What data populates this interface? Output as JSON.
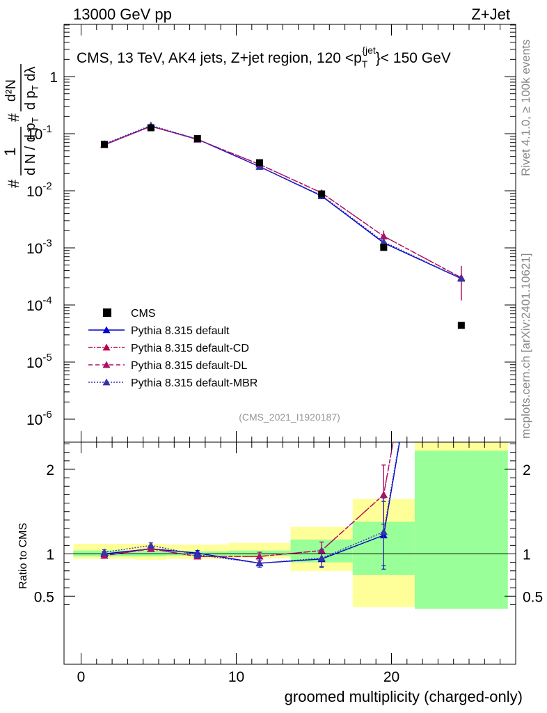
{
  "header": {
    "left": "13000 GeV pp",
    "right": "Z+Jet"
  },
  "side_labels": {
    "rivet": "Rivet 4.1.0, ≥ 100k events",
    "mcplots": "mcplots.cern.ch [arXiv:2401.10621]"
  },
  "chart_data": {
    "type": "scatter",
    "title": "CMS, 13 TeV, AK4 jets, Z+jet region, 120 <p_T^{jet}< 150 GeV",
    "title_parts": {
      "main": "CMS, 13 TeV, AK4 jets, Z+jet region, 120 <p",
      "sub": "T",
      "sup": "{jet",
      "tail": "}< 150 GeV"
    },
    "analysis_id": "(CMS_2021_I1920187)",
    "xlabel": "groomed multiplicity (charged-only)",
    "ylabel_parts": {
      "num1": "1",
      "den1": "d N / d p",
      "den1_sub": "T",
      "num2": "d²N",
      "den2": "d p",
      "den2_sub": "T",
      "den2_tail": " dλ",
      "hash": "#"
    },
    "ratio_ylabel": "Ratio to CMS",
    "xlim": [
      -1,
      28
    ],
    "ylim_log": [
      1e-06,
      10
    ],
    "ratio_ylim": [
      0.35,
      2.35
    ],
    "x_ticks": [
      "0",
      "10",
      "20"
    ],
    "y_ticks": [
      "10^-6",
      "10^-5",
      "10^-4",
      "10^-3",
      "10^-2",
      "10^-1",
      "1"
    ],
    "ratio_ticks": [
      "0.5",
      "1",
      "2"
    ],
    "legend_position": "bottom-left",
    "bin_edges": [
      -0.5,
      3.5,
      5.5,
      9.5,
      13.5,
      17.5,
      21.5,
      27.5
    ],
    "reference": {
      "name": "CMS",
      "x": [
        1.5,
        4.5,
        7.5,
        11.5,
        15.5,
        19.5,
        24.5
      ],
      "values": [
        0.065,
        0.127,
        0.082,
        0.031,
        0.0088,
        0.00102,
        4.4e-05
      ],
      "color": "#000000"
    },
    "ratio_bands": {
      "stat_lo": [
        0.97,
        0.97,
        0.98,
        0.98,
        0.9,
        0.75,
        0.35
      ],
      "stat_hi": [
        1.04,
        1.04,
        1.03,
        1.04,
        1.17,
        1.38,
        2.22
      ],
      "tot_lo": [
        0.94,
        0.93,
        0.94,
        0.95,
        0.8,
        0.37,
        0.35
      ],
      "tot_hi": [
        1.12,
        1.12,
        1.11,
        1.13,
        1.32,
        1.65,
        2.35
      ],
      "stat_color": "#99ff99",
      "total_color": "#ffff99"
    },
    "series": [
      {
        "name": "Pythia 8.315 default",
        "color": "#0000cc",
        "dash": "solid",
        "x": [
          1.5,
          4.5,
          7.5,
          11.5,
          15.5,
          19.5,
          24.5
        ],
        "values": [
          0.064,
          0.135,
          0.08,
          0.0265,
          0.0081,
          0.00122,
          0.00029
        ],
        "ratio": [
          1.0,
          1.06,
          1.01,
          0.89,
          0.94,
          1.22,
          6.6
        ],
        "ratio_err": [
          0.03,
          0.03,
          0.03,
          0.05,
          0.1,
          0.4,
          0
        ],
        "val_err": [
          0,
          0,
          0,
          0,
          0,
          0.0002,
          0
        ]
      },
      {
        "name": "Pythia 8.315 default-CD",
        "color": "#bb0055",
        "dash": "6,2,2,2",
        "x": [
          1.5,
          4.5,
          7.5,
          11.5,
          15.5,
          19.5,
          24.5
        ],
        "values": [
          0.0635,
          0.135,
          0.079,
          0.029,
          0.0092,
          0.0016,
          0.0003
        ],
        "ratio": [
          0.98,
          1.06,
          0.97,
          0.97,
          1.04,
          1.7,
          6.8
        ],
        "ratio_err": [
          0.03,
          0.03,
          0.03,
          0.05,
          0.1,
          0.35,
          0
        ],
        "val_err": [
          0,
          0,
          0,
          0,
          0,
          0.0004,
          0.00018
        ]
      },
      {
        "name": "Pythia 8.315 default-DL",
        "color": "#aa1166",
        "dash": "6,4",
        "x": [
          1.5,
          4.5,
          7.5,
          11.5,
          15.5,
          19.5,
          24.5
        ],
        "values": [
          0.0635,
          0.135,
          0.0795,
          0.029,
          0.0092,
          0.0016,
          0.0003
        ],
        "ratio": [
          0.98,
          1.06,
          0.97,
          0.97,
          1.04,
          1.7,
          6.8
        ],
        "ratio_err": [
          0.03,
          0.03,
          0.03,
          0.05,
          0.1,
          0.35,
          0
        ],
        "val_err": [
          0,
          0,
          0,
          0,
          0,
          0.0004,
          0.00018
        ]
      },
      {
        "name": "Pythia 8.315 default-MBR",
        "color": "#3333aa",
        "dash": "2,2",
        "x": [
          1.5,
          4.5,
          7.5,
          11.5,
          15.5,
          19.5,
          24.5
        ],
        "values": [
          0.066,
          0.14,
          0.08,
          0.0265,
          0.0083,
          0.00128,
          0.00029
        ],
        "ratio": [
          1.02,
          1.1,
          0.99,
          0.89,
          0.95,
          1.26,
          6.6
        ],
        "ratio_err": [
          0.03,
          0.03,
          0.03,
          0.05,
          0.1,
          0.4,
          0
        ],
        "val_err": [
          0,
          0,
          0,
          0,
          0,
          0.0002,
          0
        ]
      }
    ]
  }
}
